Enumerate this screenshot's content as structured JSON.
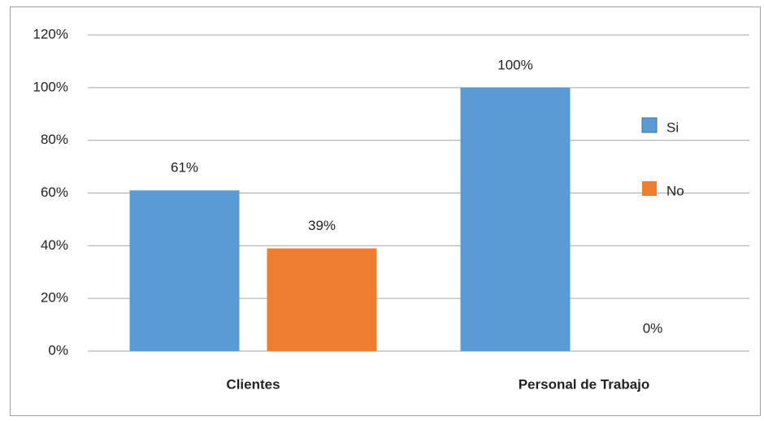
{
  "chart_data": {
    "type": "bar",
    "categories": [
      "Clientes",
      "Personal de Trabajo"
    ],
    "series": [
      {
        "name": "Si",
        "color": "#5b9bd5",
        "values": [
          61,
          100
        ],
        "value_labels": [
          "61%",
          "100%"
        ]
      },
      {
        "name": "No",
        "color": "#ed7d31",
        "values": [
          39,
          0
        ],
        "value_labels": [
          "39%",
          "0%"
        ]
      }
    ],
    "ylim": [
      0,
      120
    ],
    "yticks": [
      {
        "value": 0,
        "label": "0%"
      },
      {
        "value": 20,
        "label": "20%"
      },
      {
        "value": 40,
        "label": "40%"
      },
      {
        "value": 60,
        "label": "60%"
      },
      {
        "value": 80,
        "label": "80%"
      },
      {
        "value": 100,
        "label": "100%"
      },
      {
        "value": 120,
        "label": "120%"
      }
    ],
    "grid": true,
    "legend": "right"
  }
}
